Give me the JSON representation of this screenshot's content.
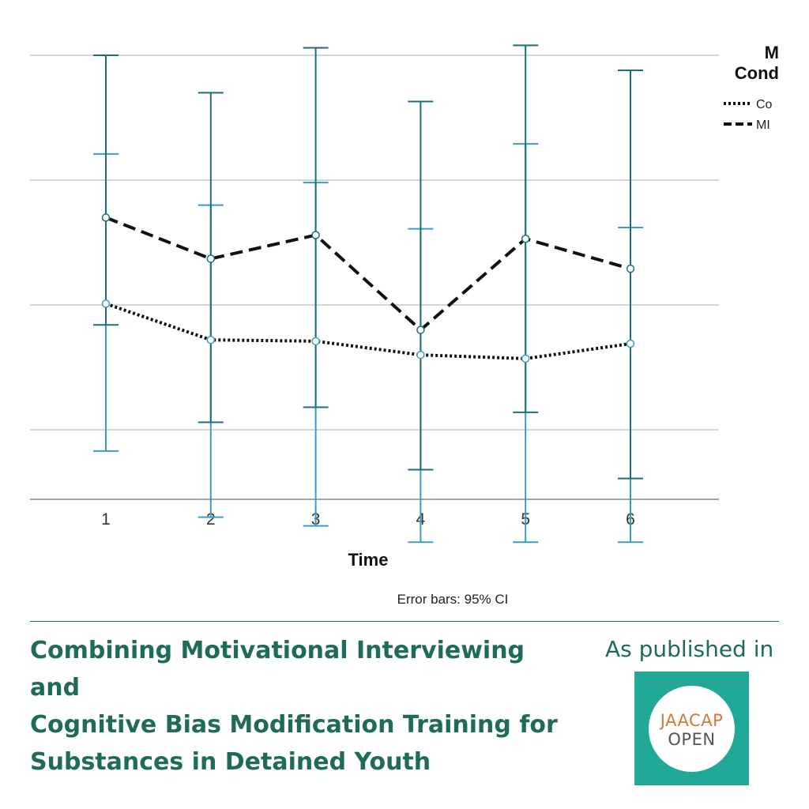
{
  "chart_data": {
    "type": "line",
    "categories": [
      "1",
      "2",
      "3",
      "4",
      "5",
      "6"
    ],
    "xlabel": "Time",
    "ylabel": "",
    "ylim": [
      0,
      4
    ],
    "y_gridlines": [
      1,
      2,
      3,
      4
    ],
    "grid": true,
    "legend_title_visible": "M\nCond",
    "legend_placement": "top-right",
    "footnote": "Error bars: 95% CI",
    "series": [
      {
        "name": "Co",
        "line_style": "dotted",
        "values": [
          2.01,
          1.72,
          1.71,
          1.6,
          1.57,
          1.69
        ],
        "ci_lower": [
          0.83,
          0.3,
          0.23,
          0.0,
          -0.18,
          0.05
        ],
        "ci_upper": [
          3.21,
          2.8,
          2.98,
          2.61,
          3.29,
          2.62
        ]
      },
      {
        "name": "MI",
        "line_style": "dashed",
        "values": [
          2.7,
          2.37,
          2.56,
          1.8,
          2.53,
          2.29
        ],
        "ci_lower": [
          1.84,
          1.06,
          1.18,
          0.68,
          1.14,
          0.61
        ],
        "ci_upper": [
          4.0,
          3.7,
          4.06,
          3.63,
          4.08,
          3.88
        ]
      }
    ],
    "colors": {
      "error_bar_co": "#3a9cc4",
      "error_bar_mi": "#1b6f78",
      "gridline": "#c8c8c8",
      "axis": "#888888"
    }
  },
  "footer": {
    "title": "Combining Motivational Interviewing and\nCognitive Bias Modification Training for\nSubstances in Detained Youth",
    "published_in": "As published in",
    "logo_line1": "JAACAP",
    "logo_line2": "OPEN",
    "title_color": "#1f6b5a",
    "logo_bg": "#1fa996",
    "logo_accent": "#d07a3a"
  }
}
